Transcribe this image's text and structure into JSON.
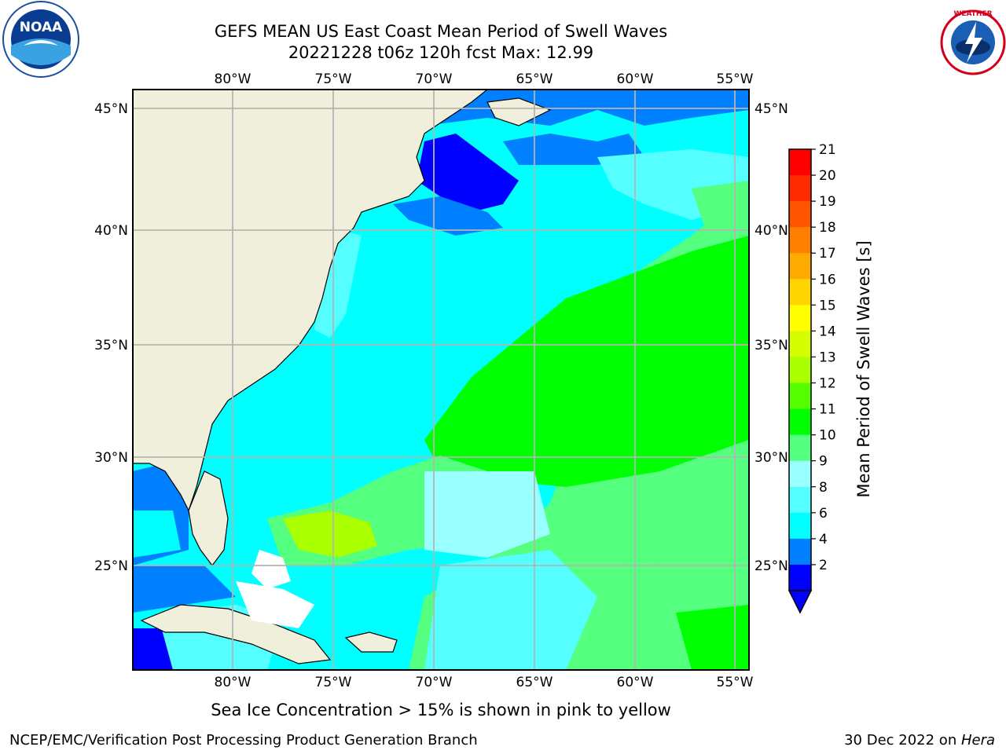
{
  "header": {
    "title_line1": "GEFS MEAN US East Coast Mean Period of Swell Waves",
    "title_line2": "20221228 t06z 120h fcst   Max: 12.99"
  },
  "logos": {
    "left": "NOAA",
    "right": "NATIONAL WEATHER SERVICE"
  },
  "map": {
    "lon_ticks": [
      "80°W",
      "75°W",
      "70°W",
      "65°W",
      "60°W",
      "55°W"
    ],
    "lat_ticks": [
      "45°N",
      "40°N",
      "35°N",
      "30°N",
      "25°N"
    ],
    "land_color": "#efefdc",
    "grid_color": "#b4b4b4"
  },
  "colorbar": {
    "label": "Mean Period of Swell Waves [s]",
    "ticks": [
      "21",
      "20",
      "19",
      "18",
      "17",
      "16",
      "15",
      "14",
      "13",
      "12",
      "11",
      "10",
      "9",
      "8",
      "6",
      "4",
      "2"
    ],
    "colors": [
      "#ff0000",
      "#ff2a00",
      "#ff5500",
      "#ff7f00",
      "#ffaa00",
      "#ffd500",
      "#ffff00",
      "#d5ff00",
      "#aaff00",
      "#55ff00",
      "#00ff00",
      "#55ff80",
      "#99ffff",
      "#55ffff",
      "#00ffff",
      "#0080ff",
      "#0000ff"
    ]
  },
  "footer": {
    "note": "Sea Ice Concentration > 15% is shown in pink to yellow",
    "credit": "NCEP/EMC/Verification Post Processing Product Generation Branch",
    "date_prefix": "30 Dec 2022 on ",
    "machine": "Hera"
  }
}
